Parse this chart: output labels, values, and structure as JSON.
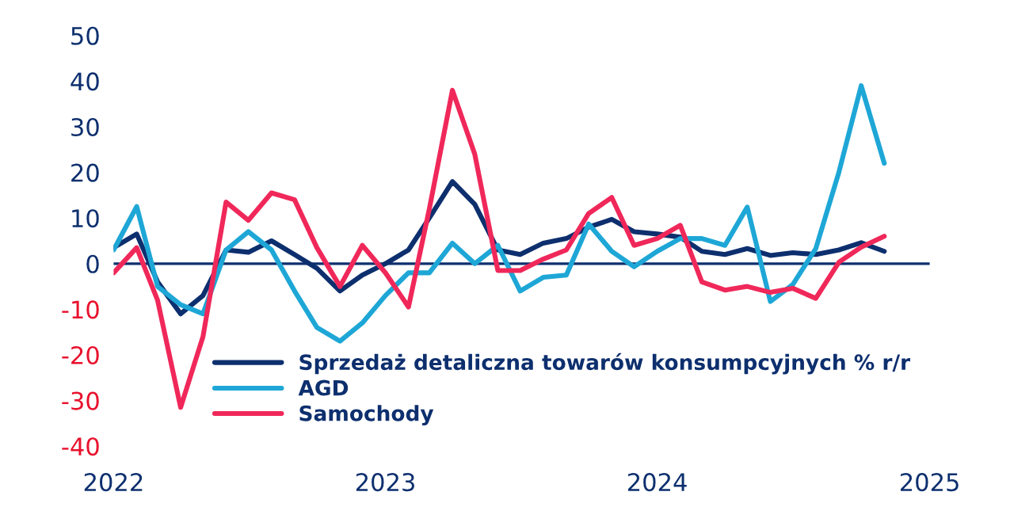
{
  "chart_data": {
    "type": "line",
    "x": [
      "2022-01",
      "2022-02",
      "2022-03",
      "2022-04",
      "2022-05",
      "2022-06",
      "2022-07",
      "2022-08",
      "2022-09",
      "2022-10",
      "2022-11",
      "2022-12",
      "2023-01",
      "2023-02",
      "2023-03",
      "2023-04",
      "2023-05",
      "2023-06",
      "2023-07",
      "2023-08",
      "2023-09",
      "2023-10",
      "2023-11",
      "2023-12",
      "2024-01",
      "2024-02",
      "2024-03",
      "2024-04",
      "2024-05",
      "2024-06",
      "2024-07",
      "2024-08",
      "2024-09",
      "2024-10",
      "2024-11"
    ],
    "series": [
      {
        "name": "Sprzedaż detaliczna towarów konsumpcyjnych % r/r",
        "color": "#0d2f6e",
        "values": [
          3.5,
          6.5,
          -4,
          -11,
          -7,
          3,
          2.5,
          5,
          2,
          -1,
          -6,
          -2.5,
          0,
          3,
          10,
          18,
          13,
          3,
          2,
          4.5,
          5.5,
          8,
          9.7,
          7,
          6.5,
          5.8,
          2.7,
          2,
          3.3,
          1.8,
          2.4,
          2,
          3,
          4.6,
          2.7
        ]
      },
      {
        "name": "AGD",
        "color": "#1ea7d6",
        "values": [
          3,
          12.5,
          -5,
          -9,
          -11,
          3,
          7,
          3,
          -6,
          -14,
          -17,
          -13,
          -7,
          -2,
          -2,
          4.5,
          0,
          4,
          -6,
          -3,
          -2.5,
          8.7,
          2.7,
          -0.7,
          2.7,
          5.5,
          5.5,
          4,
          12.4,
          -8.3,
          -4.6,
          3.3,
          20,
          39,
          22
        ]
      },
      {
        "name": "Samochody",
        "color": "#f0285a",
        "values": [
          -2,
          3.5,
          -8,
          -31.5,
          -16,
          13.5,
          9.5,
          15.5,
          14,
          3.5,
          -5,
          4,
          -2,
          -9.5,
          12,
          38,
          24,
          -1.5,
          -1.5,
          1,
          3,
          11,
          14.5,
          4,
          5.5,
          8.4,
          -4,
          -5.8,
          -5,
          -6.3,
          -5.4,
          -7.6,
          0.3,
          3.6,
          6
        ]
      }
    ],
    "xlim": [
      "2022-01",
      "2025-01"
    ],
    "xticks": [
      {
        "value": "2022-01",
        "label": "2022"
      },
      {
        "value": "2023-01",
        "label": "2023"
      },
      {
        "value": "2024-01",
        "label": "2024"
      },
      {
        "value": "2025-01",
        "label": "2025"
      }
    ],
    "ylim": [
      -40,
      50
    ],
    "yticks": [
      -40,
      -30,
      -20,
      -10,
      0,
      10,
      20,
      30,
      40,
      50
    ],
    "ref_lines": [
      {
        "axis": "y",
        "value": 0,
        "color": "#0d2f6e"
      }
    ],
    "legend": "bottom",
    "grid": false,
    "marker": "none",
    "line_style": "solid"
  }
}
